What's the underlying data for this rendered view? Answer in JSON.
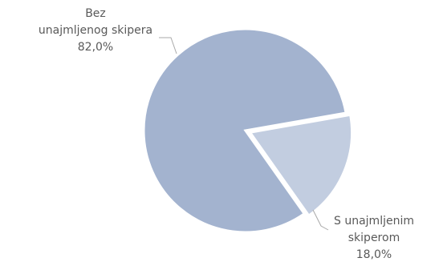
{
  "chart_data": {
    "type": "pie",
    "categories": [
      "Bez unajmljenog skipera",
      "S unajmljenim skiperom"
    ],
    "values": [
      82.0,
      18.0
    ],
    "value_labels": [
      "82,0%",
      "18,0%"
    ],
    "label_lines": [
      [
        "Bez",
        "unajmljenog skipera",
        "82,0%"
      ],
      [
        "S unajmljenim",
        "skiperom",
        "18,0%"
      ]
    ],
    "title": "",
    "colors": [
      "#a3b3cf",
      "#c2cde0"
    ],
    "legend": "none"
  }
}
